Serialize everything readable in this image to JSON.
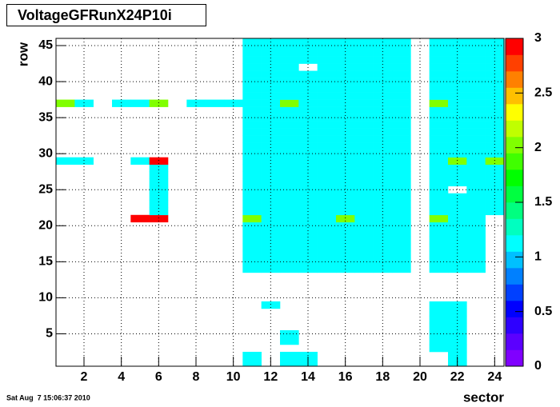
{
  "chart_data": {
    "type": "heatmap",
    "title": "VoltageGFRunX24P10i",
    "xlabel": "sector",
    "ylabel": "row",
    "timestamp": "Sat Aug  7 15:06:37 2010",
    "xlim": [
      0.5,
      24.5
    ],
    "ylim": [
      0.5,
      46
    ],
    "xticks": [
      2,
      4,
      6,
      8,
      10,
      12,
      14,
      16,
      18,
      20,
      22,
      24
    ],
    "yticks": [
      5,
      10,
      15,
      20,
      25,
      30,
      35,
      40,
      45
    ],
    "grid": true,
    "zlim": [
      0,
      3
    ],
    "zticks": [
      0,
      0.5,
      1,
      1.5,
      2,
      2.5,
      3
    ],
    "palette": [
      "#8000ff",
      "#5b00ff",
      "#2e00ff",
      "#0000ff",
      "#0040ff",
      "#0080ff",
      "#00c0ff",
      "#00ffff",
      "#00ffc0",
      "#00ff80",
      "#00ff40",
      "#00ff00",
      "#40ff00",
      "#80ff00",
      "#c0ff00",
      "#ffff00",
      "#ffc000",
      "#ff8000",
      "#ff4000",
      "#ff0000"
    ],
    "x": [
      1,
      2,
      3,
      4,
      5,
      6,
      7,
      8,
      9,
      10,
      11,
      12,
      13,
      14,
      15,
      16,
      17,
      18,
      19,
      20,
      21,
      22,
      23,
      24
    ],
    "y": [
      1,
      2,
      3,
      4,
      5,
      6,
      7,
      8,
      9,
      10,
      11,
      12,
      13,
      14,
      15,
      16,
      17,
      18,
      19,
      20,
      21,
      22,
      23,
      24,
      25,
      26,
      27,
      28,
      29,
      30,
      31,
      32,
      33,
      34,
      35,
      36,
      37,
      38,
      39,
      40,
      41,
      42,
      43,
      44,
      45,
      46
    ],
    "z": [
      [
        null,
        null,
        null,
        null,
        null,
        null,
        null,
        null,
        null,
        null,
        1.1,
        null,
        1.1,
        1.1,
        null,
        null,
        null,
        null,
        null,
        null,
        null,
        1.1,
        null,
        null
      ],
      [
        null,
        null,
        null,
        null,
        null,
        null,
        null,
        null,
        null,
        null,
        1.1,
        null,
        1.1,
        1.1,
        null,
        null,
        null,
        null,
        null,
        null,
        null,
        1.1,
        null,
        null
      ],
      [
        null,
        null,
        null,
        null,
        null,
        null,
        null,
        null,
        null,
        null,
        null,
        null,
        null,
        null,
        null,
        null,
        null,
        null,
        null,
        null,
        1.1,
        1.1,
        null,
        null
      ],
      [
        null,
        null,
        null,
        null,
        null,
        null,
        null,
        null,
        null,
        null,
        null,
        null,
        1.1,
        null,
        null,
        null,
        null,
        null,
        null,
        null,
        1.1,
        1.1,
        null,
        null
      ],
      [
        null,
        null,
        null,
        null,
        null,
        null,
        null,
        null,
        null,
        null,
        null,
        null,
        1.1,
        null,
        null,
        null,
        null,
        null,
        null,
        null,
        1.1,
        1.1,
        null,
        null
      ],
      [
        null,
        null,
        null,
        null,
        null,
        null,
        null,
        null,
        null,
        null,
        null,
        null,
        null,
        null,
        null,
        null,
        null,
        null,
        null,
        null,
        1.1,
        1.1,
        null,
        null
      ],
      [
        null,
        null,
        null,
        null,
        null,
        null,
        null,
        null,
        null,
        null,
        null,
        null,
        null,
        null,
        null,
        null,
        null,
        null,
        null,
        null,
        1.1,
        1.1,
        null,
        null
      ],
      [
        null,
        null,
        null,
        null,
        null,
        null,
        null,
        null,
        null,
        null,
        null,
        null,
        null,
        null,
        null,
        null,
        null,
        null,
        null,
        null,
        1.1,
        1.1,
        null,
        null
      ],
      [
        null,
        null,
        null,
        null,
        null,
        null,
        null,
        null,
        null,
        null,
        null,
        1.1,
        null,
        null,
        null,
        null,
        null,
        null,
        null,
        null,
        1.1,
        1.1,
        null,
        null
      ],
      [
        null,
        null,
        null,
        null,
        null,
        null,
        null,
        null,
        null,
        null,
        null,
        null,
        null,
        null,
        null,
        null,
        null,
        null,
        null,
        null,
        null,
        null,
        null,
        null
      ],
      [
        null,
        null,
        null,
        null,
        null,
        null,
        null,
        null,
        null,
        null,
        null,
        null,
        null,
        null,
        null,
        null,
        null,
        null,
        null,
        null,
        null,
        null,
        null,
        null
      ],
      [
        null,
        null,
        null,
        null,
        null,
        null,
        null,
        null,
        null,
        null,
        null,
        null,
        null,
        null,
        null,
        null,
        null,
        null,
        null,
        null,
        null,
        null,
        null,
        null
      ],
      [
        null,
        null,
        null,
        null,
        null,
        null,
        null,
        null,
        null,
        null,
        null,
        null,
        null,
        null,
        null,
        null,
        null,
        null,
        null,
        null,
        null,
        null,
        null,
        null
      ],
      [
        null,
        null,
        null,
        null,
        null,
        null,
        null,
        null,
        null,
        null,
        1.1,
        1.1,
        1.1,
        1.1,
        1.1,
        1.1,
        1.1,
        1.1,
        1.1,
        null,
        1.1,
        1.1,
        1.1,
        null
      ],
      [
        null,
        null,
        null,
        null,
        null,
        null,
        null,
        null,
        null,
        null,
        1.1,
        1.1,
        1.1,
        1.1,
        1.1,
        1.1,
        1.1,
        1.1,
        1.1,
        null,
        1.1,
        1.1,
        1.1,
        null
      ],
      [
        null,
        null,
        null,
        null,
        null,
        null,
        null,
        null,
        null,
        null,
        1.1,
        1.1,
        1.1,
        1.1,
        1.1,
        1.1,
        1.1,
        1.1,
        1.1,
        null,
        1.1,
        1.1,
        1.1,
        null
      ],
      [
        null,
        null,
        null,
        null,
        null,
        null,
        null,
        null,
        null,
        null,
        1.1,
        1.1,
        1.1,
        1.1,
        1.1,
        1.1,
        1.1,
        1.1,
        1.1,
        null,
        1.1,
        1.1,
        1.1,
        null
      ],
      [
        null,
        null,
        null,
        null,
        null,
        null,
        null,
        null,
        null,
        null,
        1.1,
        1.1,
        1.1,
        1.1,
        1.1,
        1.1,
        1.1,
        1.1,
        1.1,
        null,
        1.1,
        1.1,
        1.1,
        null
      ],
      [
        null,
        null,
        null,
        null,
        null,
        null,
        null,
        null,
        null,
        null,
        1.1,
        1.1,
        1.1,
        1.1,
        1.1,
        1.1,
        1.1,
        1.1,
        1.1,
        null,
        1.1,
        1.1,
        1.1,
        null
      ],
      [
        null,
        null,
        null,
        null,
        null,
        null,
        null,
        null,
        null,
        null,
        1.1,
        1.1,
        1.1,
        1.1,
        1.1,
        1.1,
        1.1,
        1.1,
        1.1,
        null,
        1.1,
        1.1,
        1.1,
        null
      ],
      [
        null,
        null,
        null,
        null,
        2.9,
        2.9,
        null,
        null,
        null,
        null,
        2.0,
        1.1,
        1.1,
        1.1,
        1.1,
        2.0,
        1.1,
        1.1,
        1.1,
        null,
        2.0,
        1.1,
        1.1,
        null
      ],
      [
        null,
        null,
        null,
        null,
        null,
        1.1,
        null,
        null,
        null,
        null,
        1.1,
        1.1,
        1.1,
        1.1,
        1.1,
        1.1,
        1.1,
        1.1,
        1.1,
        null,
        1.1,
        1.1,
        1.1,
        1.1
      ],
      [
        null,
        null,
        null,
        null,
        null,
        1.1,
        null,
        null,
        null,
        null,
        1.1,
        1.1,
        1.1,
        1.1,
        1.1,
        1.1,
        1.1,
        1.1,
        1.1,
        null,
        1.1,
        1.1,
        1.1,
        1.1
      ],
      [
        null,
        null,
        null,
        null,
        null,
        1.1,
        null,
        null,
        null,
        null,
        1.1,
        1.1,
        1.1,
        1.1,
        1.1,
        1.1,
        1.1,
        1.1,
        1.1,
        null,
        1.1,
        1.1,
        1.1,
        1.1
      ],
      [
        null,
        null,
        null,
        null,
        null,
        1.1,
        null,
        null,
        null,
        null,
        1.1,
        1.1,
        1.1,
        1.1,
        1.1,
        1.1,
        1.1,
        1.1,
        1.1,
        null,
        1.1,
        null,
        1.1,
        1.1
      ],
      [
        null,
        null,
        null,
        null,
        null,
        1.1,
        null,
        null,
        null,
        null,
        1.1,
        1.1,
        1.1,
        1.1,
        1.1,
        1.1,
        1.1,
        1.1,
        1.1,
        null,
        1.1,
        1.1,
        1.1,
        1.1
      ],
      [
        null,
        null,
        null,
        null,
        null,
        1.1,
        null,
        null,
        null,
        null,
        1.1,
        1.1,
        1.1,
        1.1,
        1.1,
        1.1,
        1.1,
        1.1,
        1.1,
        null,
        1.1,
        1.1,
        1.1,
        1.1
      ],
      [
        null,
        null,
        null,
        null,
        null,
        1.1,
        null,
        null,
        null,
        null,
        1.1,
        1.1,
        1.1,
        1.1,
        1.1,
        1.1,
        1.1,
        1.1,
        1.1,
        null,
        1.1,
        1.1,
        1.1,
        1.1
      ],
      [
        1.1,
        1.1,
        null,
        null,
        1.1,
        2.9,
        null,
        null,
        null,
        null,
        1.1,
        1.1,
        1.1,
        1.1,
        1.1,
        1.1,
        1.1,
        1.1,
        1.1,
        null,
        1.1,
        2.0,
        1.1,
        2.0
      ],
      [
        null,
        null,
        null,
        null,
        null,
        null,
        null,
        null,
        null,
        null,
        1.1,
        1.1,
        1.1,
        1.1,
        1.1,
        1.1,
        1.1,
        1.1,
        1.1,
        null,
        1.1,
        1.1,
        1.1,
        1.1
      ],
      [
        null,
        null,
        null,
        null,
        null,
        null,
        null,
        null,
        null,
        null,
        1.1,
        1.1,
        1.1,
        1.1,
        1.1,
        1.1,
        1.1,
        1.1,
        1.1,
        null,
        1.1,
        1.1,
        1.1,
        1.1
      ],
      [
        null,
        null,
        null,
        null,
        null,
        null,
        null,
        null,
        null,
        null,
        1.1,
        1.1,
        1.1,
        1.1,
        1.1,
        1.1,
        1.1,
        1.1,
        1.1,
        null,
        1.1,
        1.1,
        1.1,
        1.1
      ],
      [
        null,
        null,
        null,
        null,
        null,
        null,
        null,
        null,
        null,
        null,
        1.1,
        1.1,
        1.1,
        1.1,
        1.1,
        1.1,
        1.1,
        1.1,
        1.1,
        null,
        1.1,
        1.1,
        1.1,
        1.1
      ],
      [
        null,
        null,
        null,
        null,
        null,
        null,
        null,
        null,
        null,
        null,
        1.1,
        1.1,
        1.1,
        1.1,
        1.1,
        1.1,
        1.1,
        1.1,
        1.1,
        null,
        1.1,
        1.1,
        1.1,
        1.1
      ],
      [
        null,
        null,
        null,
        null,
        null,
        null,
        null,
        null,
        null,
        null,
        1.1,
        1.1,
        1.1,
        1.1,
        1.1,
        1.1,
        1.1,
        1.1,
        1.1,
        null,
        1.1,
        1.1,
        1.1,
        1.1
      ],
      [
        null,
        null,
        null,
        null,
        null,
        null,
        null,
        null,
        null,
        null,
        1.1,
        1.1,
        1.1,
        1.1,
        1.1,
        1.1,
        1.1,
        1.1,
        1.1,
        null,
        1.1,
        1.1,
        1.1,
        1.1
      ],
      [
        2.0,
        1.1,
        null,
        1.1,
        1.1,
        2.0,
        null,
        1.1,
        1.1,
        1.1,
        1.1,
        1.1,
        2.0,
        1.1,
        1.1,
        1.1,
        1.1,
        1.1,
        1.1,
        null,
        2.0,
        1.1,
        1.1,
        1.1
      ],
      [
        null,
        null,
        null,
        null,
        null,
        null,
        null,
        null,
        null,
        null,
        1.1,
        1.1,
        1.1,
        1.1,
        1.1,
        1.1,
        1.1,
        1.1,
        1.1,
        null,
        1.1,
        1.1,
        1.1,
        1.1
      ],
      [
        null,
        null,
        null,
        null,
        null,
        null,
        null,
        null,
        null,
        null,
        1.1,
        1.1,
        1.1,
        1.1,
        1.1,
        1.1,
        1.1,
        1.1,
        1.1,
        null,
        1.1,
        1.1,
        1.1,
        1.1
      ],
      [
        null,
        null,
        null,
        null,
        null,
        null,
        null,
        null,
        null,
        null,
        1.1,
        1.1,
        1.1,
        1.1,
        1.1,
        1.1,
        1.1,
        1.1,
        1.1,
        null,
        1.1,
        1.1,
        1.1,
        1.1
      ],
      [
        null,
        null,
        null,
        null,
        null,
        null,
        null,
        null,
        null,
        null,
        1.1,
        1.1,
        1.1,
        1.1,
        1.1,
        1.1,
        1.1,
        1.1,
        1.1,
        null,
        1.1,
        1.1,
        1.1,
        1.1
      ],
      [
        null,
        null,
        null,
        null,
        null,
        null,
        null,
        null,
        null,
        null,
        1.1,
        1.1,
        1.1,
        null,
        1.1,
        1.1,
        1.1,
        1.1,
        1.1,
        null,
        1.1,
        1.1,
        1.1,
        1.1
      ],
      [
        null,
        null,
        null,
        null,
        null,
        null,
        null,
        null,
        null,
        null,
        1.1,
        1.1,
        1.1,
        1.1,
        1.1,
        1.1,
        1.1,
        1.1,
        1.1,
        null,
        1.1,
        1.1,
        1.1,
        1.1
      ],
      [
        null,
        null,
        null,
        null,
        null,
        null,
        null,
        null,
        null,
        null,
        1.1,
        1.1,
        1.1,
        1.1,
        1.1,
        1.1,
        1.1,
        1.1,
        1.1,
        null,
        1.1,
        1.1,
        1.1,
        1.1
      ],
      [
        null,
        null,
        null,
        null,
        null,
        null,
        null,
        null,
        null,
        null,
        1.1,
        1.1,
        1.1,
        1.1,
        1.1,
        1.1,
        1.1,
        1.1,
        1.1,
        null,
        1.1,
        1.1,
        1.1,
        1.1
      ],
      [
        null,
        null,
        null,
        null,
        null,
        null,
        null,
        null,
        null,
        null,
        1.1,
        1.1,
        1.1,
        1.1,
        1.1,
        1.1,
        1.1,
        1.1,
        1.1,
        null,
        1.1,
        1.1,
        1.1,
        1.1
      ]
    ]
  }
}
